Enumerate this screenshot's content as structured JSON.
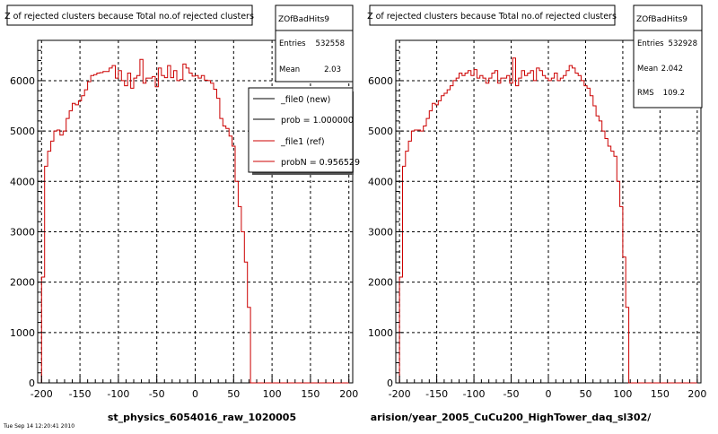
{
  "panels": [
    {
      "title": "Z of rejected clusters  because Total no.of rejected clusters",
      "stats": {
        "name": "ZOfBadHits9",
        "rows": [
          {
            "label": "Entries",
            "value": "532558"
          },
          {
            "label": "Mean",
            "value": "2.03"
          }
        ]
      },
      "legend": {
        "entries": [
          {
            "text": "_file0 (new)",
            "color": "#000000"
          },
          {
            "text": "prob = 1.000000",
            "color": "#000000"
          },
          {
            "text": "_file1 (ref)",
            "color": "#cc0000"
          },
          {
            "text": "probN = 0.956529",
            "color": "#cc0000"
          }
        ]
      },
      "xlabel": "st_physics_6054016_raw_1020005"
    },
    {
      "title": "Z of rejected clusters  because Total no.of rejected clusters",
      "stats": {
        "name": "ZOfBadHits9",
        "rows": [
          {
            "label": "Entries",
            "value": "532928"
          },
          {
            "label": "Mean",
            "value": "2.042"
          },
          {
            "label": "RMS",
            "value": "109.2"
          }
        ]
      },
      "xlabel": "arision/year_2005_CuCu200_HighTower_daq_sl302/"
    }
  ],
  "footer_text": "Tue Sep 14 12:20:41 2010",
  "chart_data": [
    {
      "type": "histogram",
      "title": "Z of rejected clusters  because Total no.of rejected clusters",
      "xlabel": "st_physics_6054016_raw_1020005",
      "ylabel": "",
      "xlim": [
        -205,
        205
      ],
      "ylim": [
        0,
        6800
      ],
      "xticks": [
        -200,
        -150,
        -100,
        -50,
        0,
        50,
        100,
        150,
        200
      ],
      "yticks": [
        0,
        1000,
        2000,
        3000,
        4000,
        5000,
        6000
      ],
      "grid": true,
      "legend_position": "top-right",
      "bin_width": 4,
      "x_start": -200,
      "series": [
        {
          "name": "_file1 (ref)",
          "color": "#cc0000",
          "values": [
            2100,
            4300,
            4600,
            4800,
            5000,
            5020,
            4920,
            5000,
            5250,
            5400,
            5550,
            5520,
            5600,
            5700,
            5820,
            5980,
            6100,
            6120,
            6150,
            6160,
            6180,
            6180,
            6250,
            6300,
            6050,
            6200,
            6000,
            5900,
            6150,
            5850,
            6050,
            6100,
            6420,
            5950,
            6050,
            6050,
            6080,
            5880,
            6250,
            6100,
            6060,
            6300,
            6060,
            6200,
            6000,
            6020,
            6330,
            6250,
            6150,
            6090,
            6100,
            6050,
            6100,
            6010,
            6000,
            5950,
            5830,
            5650,
            5250,
            5100,
            5050,
            4900,
            4700,
            4000,
            3500,
            3000,
            2400,
            1500,
            0,
            0,
            0,
            0,
            0,
            0,
            0,
            0,
            0,
            0,
            0,
            0,
            0,
            0,
            0,
            0,
            0,
            0,
            0,
            0,
            0,
            0,
            0,
            0,
            0,
            0,
            0,
            0,
            0,
            0,
            0,
            0
          ]
        }
      ]
    },
    {
      "type": "histogram",
      "title": "Z of rejected clusters  because Total no.of rejected clusters",
      "xlabel": "arision/year_2005_CuCu200_HighTower_daq_sl302/",
      "ylabel": "",
      "xlim": [
        -205,
        205
      ],
      "ylim": [
        0,
        6800
      ],
      "xticks": [
        -200,
        -150,
        -100,
        -50,
        0,
        50,
        100,
        150,
        200
      ],
      "yticks": [
        0,
        1000,
        2000,
        3000,
        4000,
        5000,
        6000
      ],
      "grid": true,
      "bin_width": 4,
      "x_start": -200,
      "series": [
        {
          "name": "ZOfBadHits9",
          "color": "#cc0000",
          "values": [
            2100,
            4300,
            4600,
            4800,
            5000,
            5020,
            5020,
            5000,
            5100,
            5250,
            5400,
            5550,
            5520,
            5600,
            5700,
            5750,
            5820,
            5900,
            6000,
            6050,
            6150,
            6100,
            6150,
            6200,
            6100,
            6220,
            6050,
            6100,
            6050,
            5950,
            6050,
            6150,
            6200,
            5950,
            6050,
            6050,
            6100,
            5950,
            6450,
            5900,
            6050,
            6200,
            6100,
            6150,
            6200,
            6000,
            6250,
            6200,
            6100,
            6050,
            6000,
            6050,
            6150,
            6000,
            6050,
            6100,
            6200,
            6300,
            6250,
            6150,
            6100,
            6000,
            5900,
            5850,
            5700,
            5500,
            5300,
            5200,
            5000,
            4850,
            4700,
            4600,
            4500,
            4000,
            3500,
            2500,
            1500,
            0,
            0,
            0,
            0,
            0,
            0,
            0,
            0,
            0,
            0,
            0,
            0,
            0,
            0,
            0,
            0,
            0,
            0,
            0,
            0,
            0,
            0,
            0
          ]
        }
      ]
    }
  ]
}
